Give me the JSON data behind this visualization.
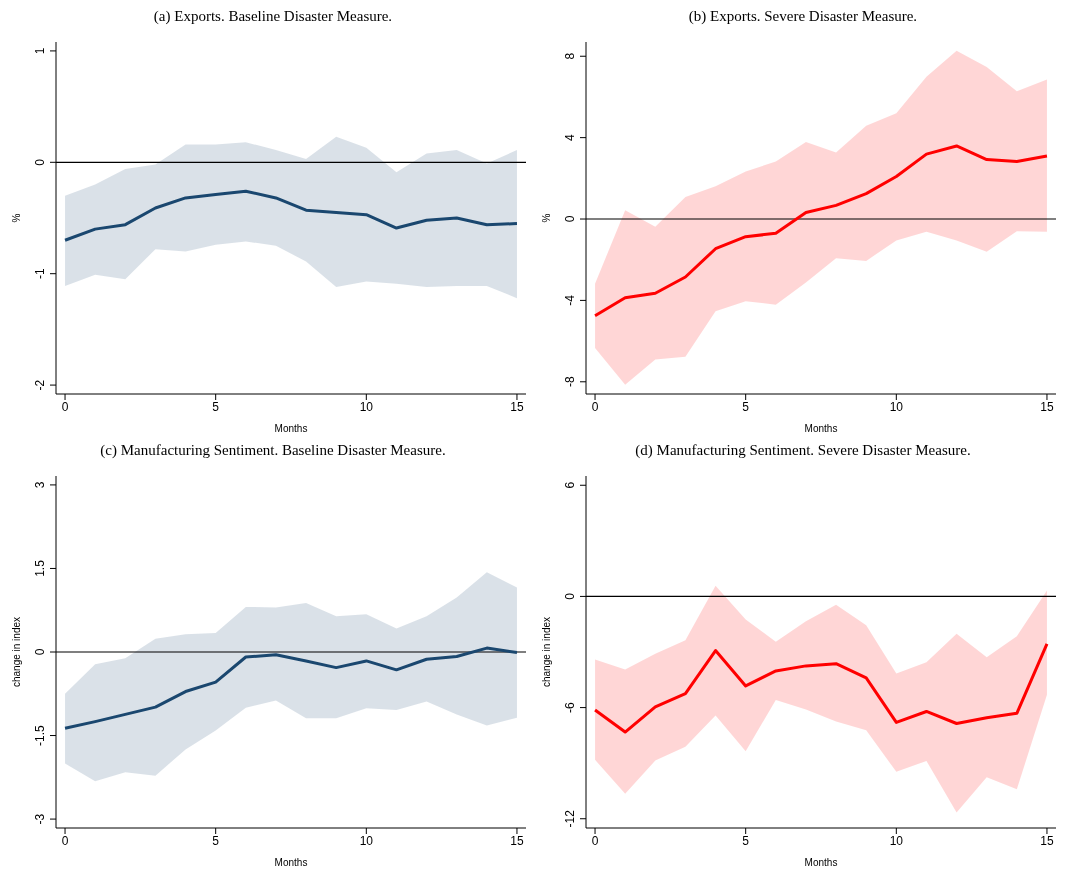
{
  "chart_data": [
    {
      "type": "line",
      "title": "(a) Exports. Baseline Disaster Measure.",
      "xlabel": "Months",
      "ylabel": "%",
      "x": [
        0,
        1,
        2,
        3,
        4,
        5,
        6,
        7,
        8,
        9,
        10,
        11,
        12,
        13,
        14,
        15
      ],
      "xlim": [
        -0.3,
        15.3
      ],
      "xticks": [
        0,
        5,
        10,
        15
      ],
      "ylim": [
        -2.08,
        1.08
      ],
      "yticks": [
        -2,
        -1,
        0,
        1
      ],
      "marker": "none",
      "series": [
        {
          "color": "#1a476f",
          "values": [
            -0.7,
            -0.6,
            -0.56,
            -0.41,
            -0.32,
            -0.29,
            -0.26,
            -0.32,
            -0.43,
            -0.45,
            -0.47,
            -0.59,
            -0.52,
            -0.5,
            -0.56,
            -0.55
          ],
          "lower": [
            -1.11,
            -1.01,
            -1.05,
            -0.78,
            -0.8,
            -0.74,
            -0.71,
            -0.75,
            -0.89,
            -1.12,
            -1.07,
            -1.09,
            -1.12,
            -1.11,
            -1.11,
            -1.22
          ],
          "upper": [
            -0.3,
            -0.2,
            -0.06,
            -0.02,
            0.16,
            0.16,
            0.18,
            0.11,
            0.03,
            0.23,
            0.13,
            -0.09,
            0.08,
            0.11,
            -0.01,
            0.11
          ]
        }
      ],
      "ref_lines": [
        {
          "axis": "y",
          "value": 0,
          "color": "#000000"
        }
      ]
    },
    {
      "type": "line",
      "title": "(b) Exports. Severe Disaster Measure.",
      "xlabel": "Months",
      "ylabel": "%",
      "x": [
        0,
        1,
        2,
        3,
        4,
        5,
        6,
        7,
        8,
        9,
        10,
        11,
        12,
        13,
        14,
        15
      ],
      "xlim": [
        -0.3,
        15.3
      ],
      "xticks": [
        0,
        5,
        10,
        15
      ],
      "ylim": [
        -8.6,
        8.7
      ],
      "yticks": [
        -8,
        -4,
        0,
        4,
        8
      ],
      "marker": "none",
      "series": [
        {
          "color": "#ff0000",
          "values": [
            -4.75,
            -3.87,
            -3.65,
            -2.85,
            -1.46,
            -0.87,
            -0.7,
            0.32,
            0.67,
            1.25,
            2.09,
            3.19,
            3.59,
            2.92,
            2.83,
            3.1
          ],
          "lower": [
            -6.34,
            -8.14,
            -6.9,
            -6.77,
            -4.53,
            -4.04,
            -4.21,
            -3.12,
            -1.93,
            -2.06,
            -1.05,
            -0.63,
            -1.05,
            -1.61,
            -0.6,
            -0.63
          ],
          "upper": [
            -3.18,
            0.43,
            -0.38,
            1.08,
            1.61,
            2.33,
            2.83,
            3.79,
            3.27,
            4.58,
            5.2,
            6.99,
            8.27,
            7.47,
            6.28,
            6.86
          ]
        }
      ],
      "ref_lines": [
        {
          "axis": "y",
          "value": 0,
          "color": "#000000"
        }
      ]
    },
    {
      "type": "line",
      "title": "(c) Manufacturing Sentiment. Baseline Disaster Measure.",
      "xlabel": "Months",
      "ylabel": "change in index",
      "x": [
        0,
        1,
        2,
        3,
        4,
        5,
        6,
        7,
        8,
        9,
        10,
        11,
        12,
        13,
        14,
        15
      ],
      "xlim": [
        -0.3,
        15.3
      ],
      "xticks": [
        0,
        5,
        10,
        15
      ],
      "ylim": [
        -3.16,
        3.16
      ],
      "yticks": [
        -3,
        -1.5,
        0,
        1.5,
        3
      ],
      "marker": "none",
      "series": [
        {
          "color": "#1a476f",
          "values": [
            -1.37,
            -1.25,
            -1.12,
            -0.99,
            -0.71,
            -0.54,
            -0.09,
            -0.05,
            -0.16,
            -0.28,
            -0.16,
            -0.32,
            -0.13,
            -0.08,
            0.07,
            -0.01
          ],
          "lower": [
            -2.0,
            -2.32,
            -2.16,
            -2.22,
            -1.75,
            -1.41,
            -1.0,
            -0.87,
            -1.19,
            -1.19,
            -1.01,
            -1.04,
            -0.89,
            -1.12,
            -1.32,
            -1.18
          ],
          "upper": [
            -0.75,
            -0.22,
            -0.11,
            0.24,
            0.32,
            0.34,
            0.81,
            0.8,
            0.88,
            0.64,
            0.68,
            0.42,
            0.64,
            0.98,
            1.43,
            1.16
          ]
        }
      ],
      "ref_lines": [
        {
          "axis": "y",
          "value": 0,
          "color": "#000000"
        }
      ]
    },
    {
      "type": "line",
      "title": "(d) Manufacturing Sentiment. Severe Disaster Measure.",
      "xlabel": "Months",
      "ylabel": "change in index",
      "x": [
        0,
        1,
        2,
        3,
        4,
        5,
        6,
        7,
        8,
        9,
        10,
        11,
        12,
        13,
        14,
        15
      ],
      "xlim": [
        -0.3,
        15.3
      ],
      "xticks": [
        0,
        5,
        10,
        15
      ],
      "ylim": [
        -12.5,
        6.5
      ],
      "yticks": [
        -12,
        -6,
        0,
        6
      ],
      "marker": "none",
      "series": [
        {
          "color": "#ff0000",
          "values": [
            -6.13,
            -7.32,
            -5.96,
            -5.25,
            -2.92,
            -4.83,
            -4.02,
            -3.75,
            -3.63,
            -4.4,
            -6.8,
            -6.21,
            -6.86,
            -6.55,
            -6.31,
            -2.56
          ],
          "lower": [
            -8.82,
            -10.65,
            -8.86,
            -8.11,
            -6.43,
            -8.36,
            -5.59,
            -6.1,
            -6.75,
            -7.22,
            -9.47,
            -8.88,
            -11.66,
            -9.76,
            -10.41,
            -5.31
          ],
          "upper": [
            -3.41,
            -3.94,
            -3.1,
            -2.37,
            0.57,
            -1.24,
            -2.45,
            -1.34,
            -0.45,
            -1.56,
            -4.16,
            -3.55,
            -2.01,
            -3.29,
            -2.15,
            0.32
          ]
        }
      ],
      "ref_lines": [
        {
          "axis": "y",
          "value": 0,
          "color": "#000000"
        }
      ]
    }
  ]
}
